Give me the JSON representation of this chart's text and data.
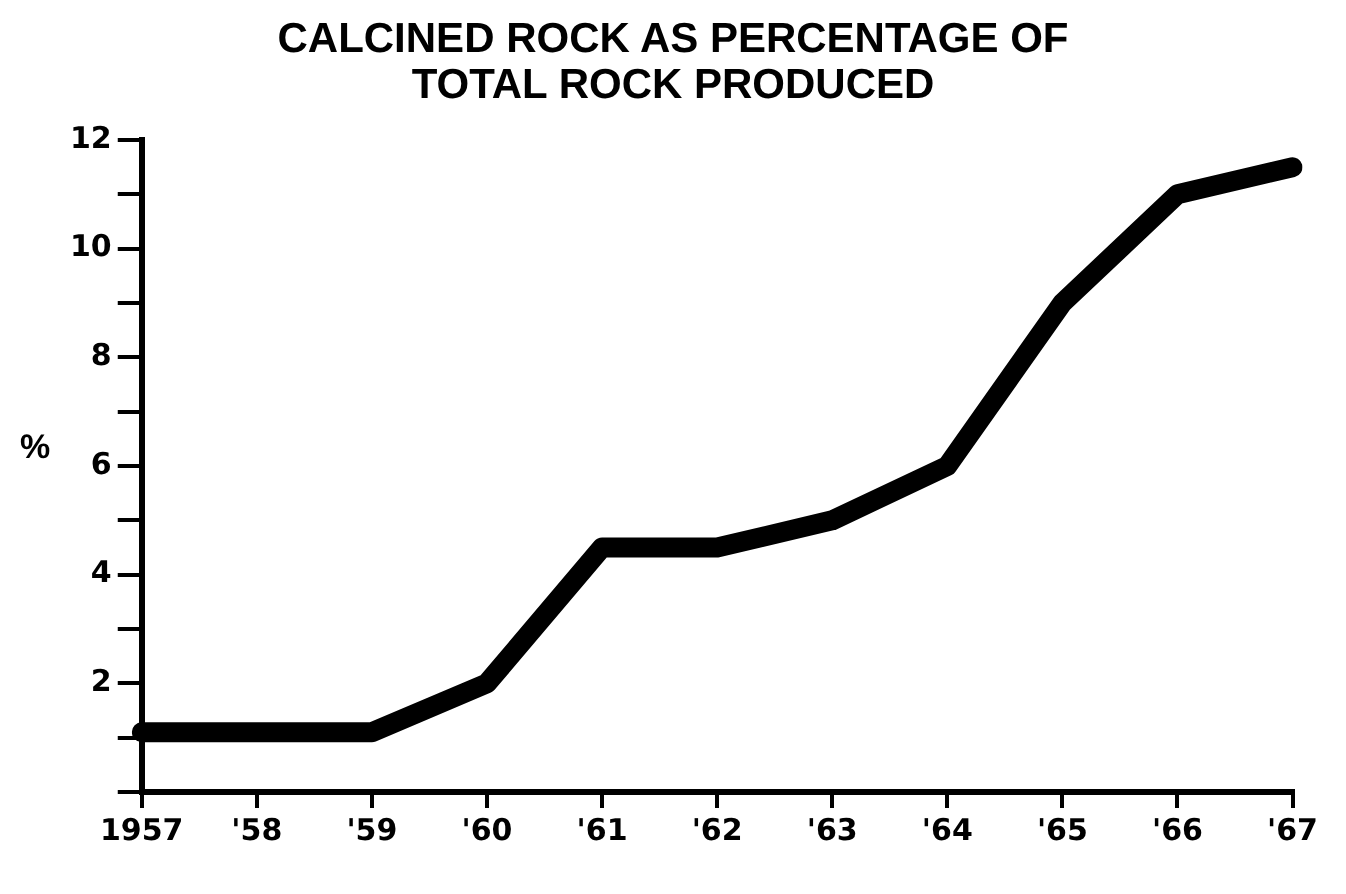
{
  "chart_data": {
    "type": "line",
    "title": "CALCINED ROCK AS PERCENTAGE OF TOTAL ROCK PRODUCED",
    "ylabel": "%",
    "categories": [
      "1957",
      "'58",
      "'59",
      "'60",
      "'61",
      "'62",
      "'63",
      "'64",
      "'65",
      "'66",
      "'67"
    ],
    "series": [
      {
        "color": "#000000",
        "values": [
          1.1,
          1.1,
          1.1,
          2,
          4.5,
          4.5,
          5,
          6,
          9,
          11,
          11.5
        ]
      }
    ],
    "ylim": [
      0,
      12
    ],
    "yticks": [
      {
        "value": 0,
        "label": null
      },
      {
        "value": 1,
        "label": null
      },
      2,
      {
        "value": 3,
        "label": null
      },
      4,
      {
        "value": 5,
        "label": null
      },
      6,
      {
        "value": 7,
        "label": null
      },
      8,
      {
        "value": 9,
        "label": null
      },
      10,
      {
        "value": 11,
        "label": null
      },
      12
    ],
    "grid": false,
    "legend": false,
    "marker": "none",
    "line_style": "solid"
  }
}
